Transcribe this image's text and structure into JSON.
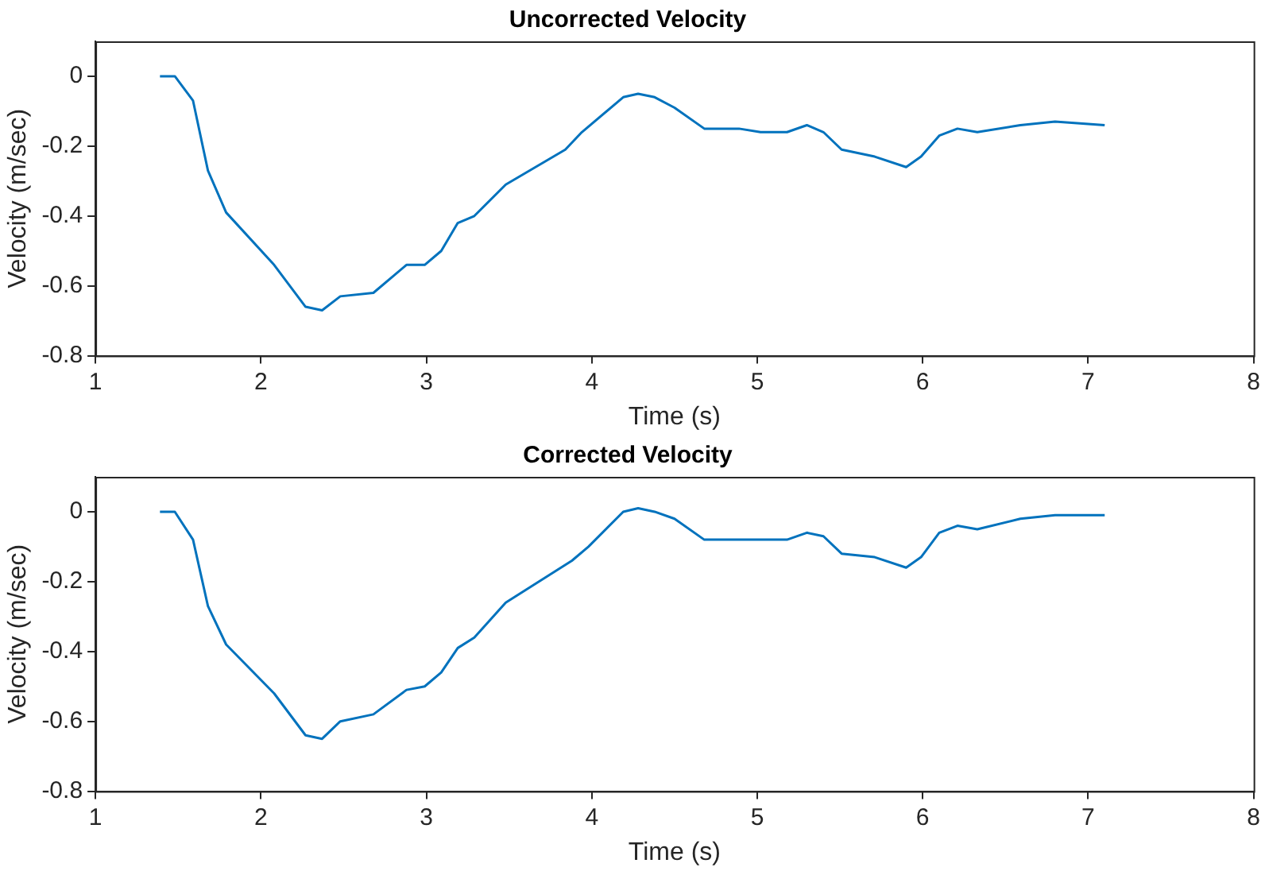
{
  "chart_data": [
    {
      "type": "line",
      "title": "Uncorrected Velocity",
      "xlabel": "Time (s)",
      "ylabel": "Velocity (m/sec)",
      "xlim": [
        1,
        8
      ],
      "xticks": [
        1,
        2,
        3,
        4,
        5,
        6,
        7,
        8
      ],
      "ylim": [
        -0.8,
        0.1
      ],
      "yticks": [
        -0.8,
        -0.6,
        -0.4,
        -0.2,
        0
      ],
      "series": [
        {
          "color": "#0072bd",
          "x": [
            1.39,
            1.48,
            1.59,
            1.68,
            1.79,
            2.08,
            2.27,
            2.37,
            2.48,
            2.68,
            2.88,
            2.99,
            3.09,
            3.19,
            3.29,
            3.48,
            3.84,
            3.94,
            4.19,
            4.28,
            4.38,
            4.5,
            4.68,
            4.89,
            5.02,
            5.18,
            5.3,
            5.4,
            5.51,
            5.71,
            5.9,
            5.99,
            6.1,
            6.21,
            6.33,
            6.59,
            6.8,
            7.1
          ],
          "values": [
            0,
            0,
            -0.07,
            -0.27,
            -0.39,
            -0.54,
            -0.66,
            -0.67,
            -0.63,
            -0.62,
            -0.54,
            -0.54,
            -0.5,
            -0.42,
            -0.4,
            -0.31,
            -0.21,
            -0.16,
            -0.06,
            -0.05,
            -0.06,
            -0.09,
            -0.15,
            -0.15,
            -0.16,
            -0.16,
            -0.14,
            -0.16,
            -0.21,
            -0.23,
            -0.26,
            -0.23,
            -0.17,
            -0.15,
            -0.16,
            -0.14,
            -0.13,
            -0.14
          ]
        }
      ]
    },
    {
      "type": "line",
      "title": "Corrected Velocity",
      "xlabel": "Time (s)",
      "ylabel": "Velocity (m/sec)",
      "xlim": [
        1,
        8
      ],
      "xticks": [
        1,
        2,
        3,
        4,
        5,
        6,
        7,
        8
      ],
      "ylim": [
        -0.8,
        0.1
      ],
      "yticks": [
        -0.8,
        -0.6,
        -0.4,
        -0.2,
        0
      ],
      "series": [
        {
          "color": "#0072bd",
          "x": [
            1.39,
            1.48,
            1.59,
            1.68,
            1.79,
            2.08,
            2.27,
            2.37,
            2.48,
            2.68,
            2.88,
            2.99,
            3.09,
            3.19,
            3.29,
            3.48,
            3.88,
            3.98,
            4.19,
            4.28,
            4.38,
            4.5,
            4.68,
            4.89,
            5.02,
            5.18,
            5.3,
            5.4,
            5.51,
            5.71,
            5.9,
            5.99,
            6.1,
            6.21,
            6.33,
            6.59,
            6.8,
            7.1
          ],
          "values": [
            0,
            0,
            -0.08,
            -0.27,
            -0.38,
            -0.52,
            -0.64,
            -0.65,
            -0.6,
            -0.58,
            -0.51,
            -0.5,
            -0.46,
            -0.39,
            -0.36,
            -0.26,
            -0.14,
            -0.1,
            0,
            0.01,
            0,
            -0.02,
            -0.08,
            -0.08,
            -0.08,
            -0.08,
            -0.06,
            -0.07,
            -0.12,
            -0.13,
            -0.16,
            -0.13,
            -0.06,
            -0.04,
            -0.05,
            -0.02,
            -0.01,
            -0.01
          ]
        }
      ]
    }
  ]
}
